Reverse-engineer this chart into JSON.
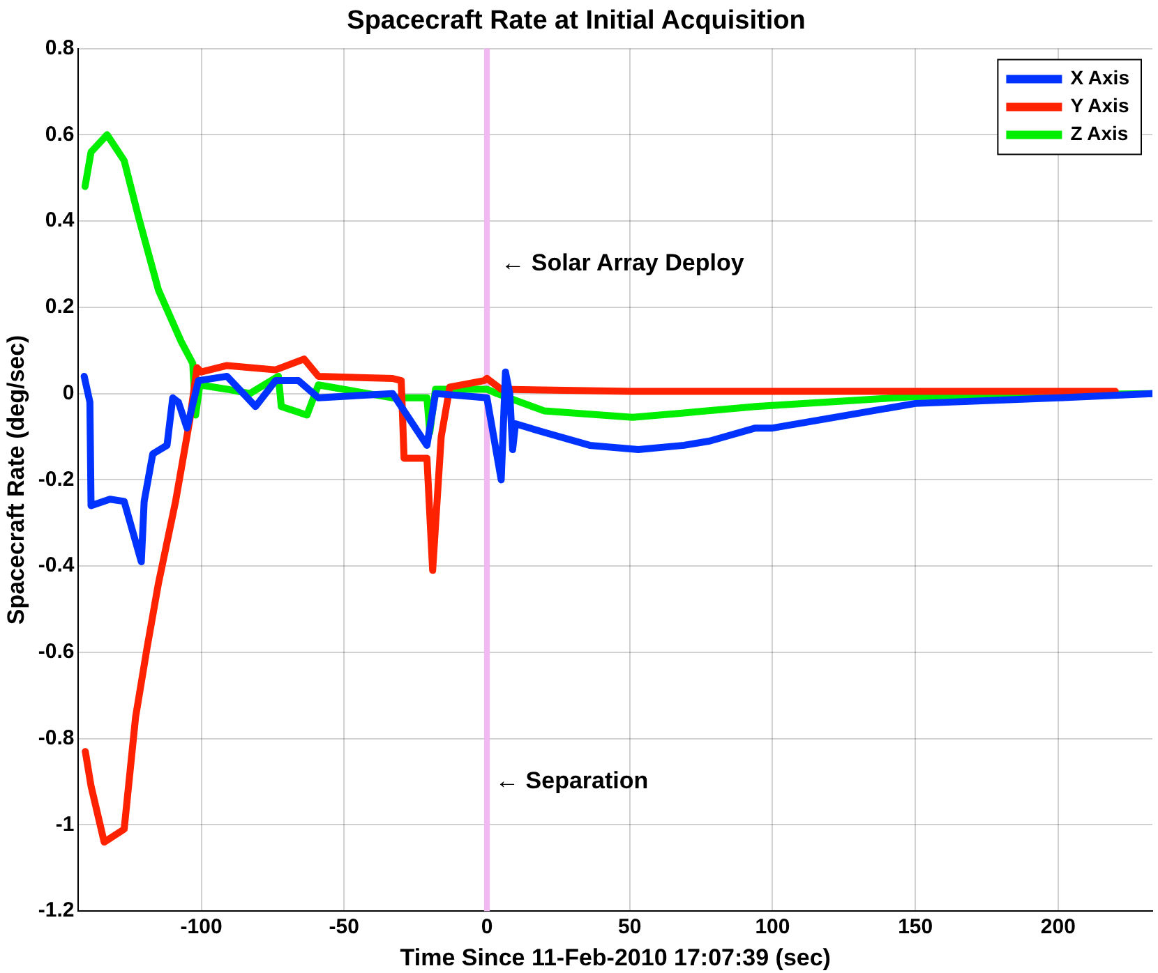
{
  "chart_data": {
    "type": "line",
    "title": "Spacecraft Rate at Initial Acquisition",
    "xlabel": "Time Since 11-Feb-2010 17:07:39 (sec)",
    "ylabel": "Spacecraft Rate (deg/sec)",
    "xlim": [
      -143,
      233
    ],
    "ylim": [
      -1.2,
      0.8
    ],
    "xticks": [
      -100,
      -50,
      0,
      50,
      100,
      150,
      200
    ],
    "yticks": [
      0.8,
      0.6,
      0.4,
      0.2,
      0,
      -0.2,
      -0.4,
      -0.6,
      -0.8,
      -1,
      -1.2
    ],
    "grid": true,
    "legend": "top right",
    "marker": "none",
    "line_style": "solid",
    "bands": [
      {
        "axis": "x",
        "from": -1,
        "to": 1,
        "color": "#f2b8f2"
      }
    ],
    "annotations": [
      {
        "text": "← Solar Array Deploy",
        "x": 3,
        "y": 0.3
      },
      {
        "text": "← Separation",
        "x": 1,
        "y": -0.9
      }
    ],
    "series": [
      {
        "name": "X Axis",
        "color": "#0033ff",
        "x": [
          -141,
          -139,
          -138.6,
          -132,
          -127,
          -121,
          -120,
          -117,
          -112,
          -110,
          -108,
          -105,
          -101,
          -91,
          -81,
          -74,
          -66,
          -59,
          -33,
          -21,
          -18,
          0,
          5,
          6.5,
          8,
          9,
          10,
          20,
          36,
          53,
          69,
          78,
          94,
          100,
          150,
          200,
          233
        ],
        "values": [
          0.04,
          -0.02,
          -0.26,
          -0.245,
          -0.25,
          -0.39,
          -0.25,
          -0.14,
          -0.12,
          -0.01,
          -0.02,
          -0.08,
          0.03,
          0.04,
          -0.03,
          0.03,
          0.03,
          -0.01,
          0,
          -0.12,
          0,
          -0.01,
          -0.2,
          0.05,
          0,
          -0.13,
          -0.07,
          -0.09,
          -0.12,
          -0.13,
          -0.12,
          -0.11,
          -0.08,
          -0.08,
          -0.023,
          -0.01,
          0
        ]
      },
      {
        "name": "Y Axis",
        "color": "#ff2200",
        "x": [
          -140.6,
          -138.6,
          -134,
          -127,
          -123,
          -119,
          -115,
          -109,
          -104,
          -101.5,
          -100,
          -91,
          -74,
          -64,
          -59,
          -33,
          -30,
          -29,
          -21,
          -19,
          -16,
          -13,
          -1,
          0,
          5,
          50,
          100,
          150,
          220
        ],
        "values": [
          -0.83,
          -0.91,
          -1.04,
          -1.01,
          -0.75,
          -0.59,
          -0.44,
          -0.25,
          -0.06,
          0.06,
          0.05,
          0.065,
          0.055,
          0.08,
          0.04,
          0.035,
          0.03,
          -0.15,
          -0.15,
          -0.41,
          -0.1,
          0.015,
          0.03,
          0.035,
          0.01,
          0.005,
          0.005,
          0.005,
          0.005
        ]
      },
      {
        "name": "Z Axis",
        "color": "#00ee00",
        "x": [
          -140.7,
          -138.6,
          -133,
          -127,
          -122,
          -115,
          -107,
          -103,
          -102,
          -100.5,
          -91,
          -83,
          -73,
          -72,
          -63,
          -59,
          -33,
          -21,
          -20,
          -18,
          0,
          3.5,
          20,
          51,
          69,
          94,
          150,
          233
        ],
        "values": [
          0.48,
          0.56,
          0.6,
          0.54,
          0.41,
          0.24,
          0.12,
          0.07,
          -0.05,
          0.02,
          0.01,
          0,
          0.04,
          -0.03,
          -0.05,
          0.02,
          -0.01,
          -0.01,
          -0.09,
          0.01,
          0.01,
          0,
          -0.04,
          -0.055,
          -0.045,
          -0.03,
          -0.007,
          0
        ]
      }
    ]
  }
}
